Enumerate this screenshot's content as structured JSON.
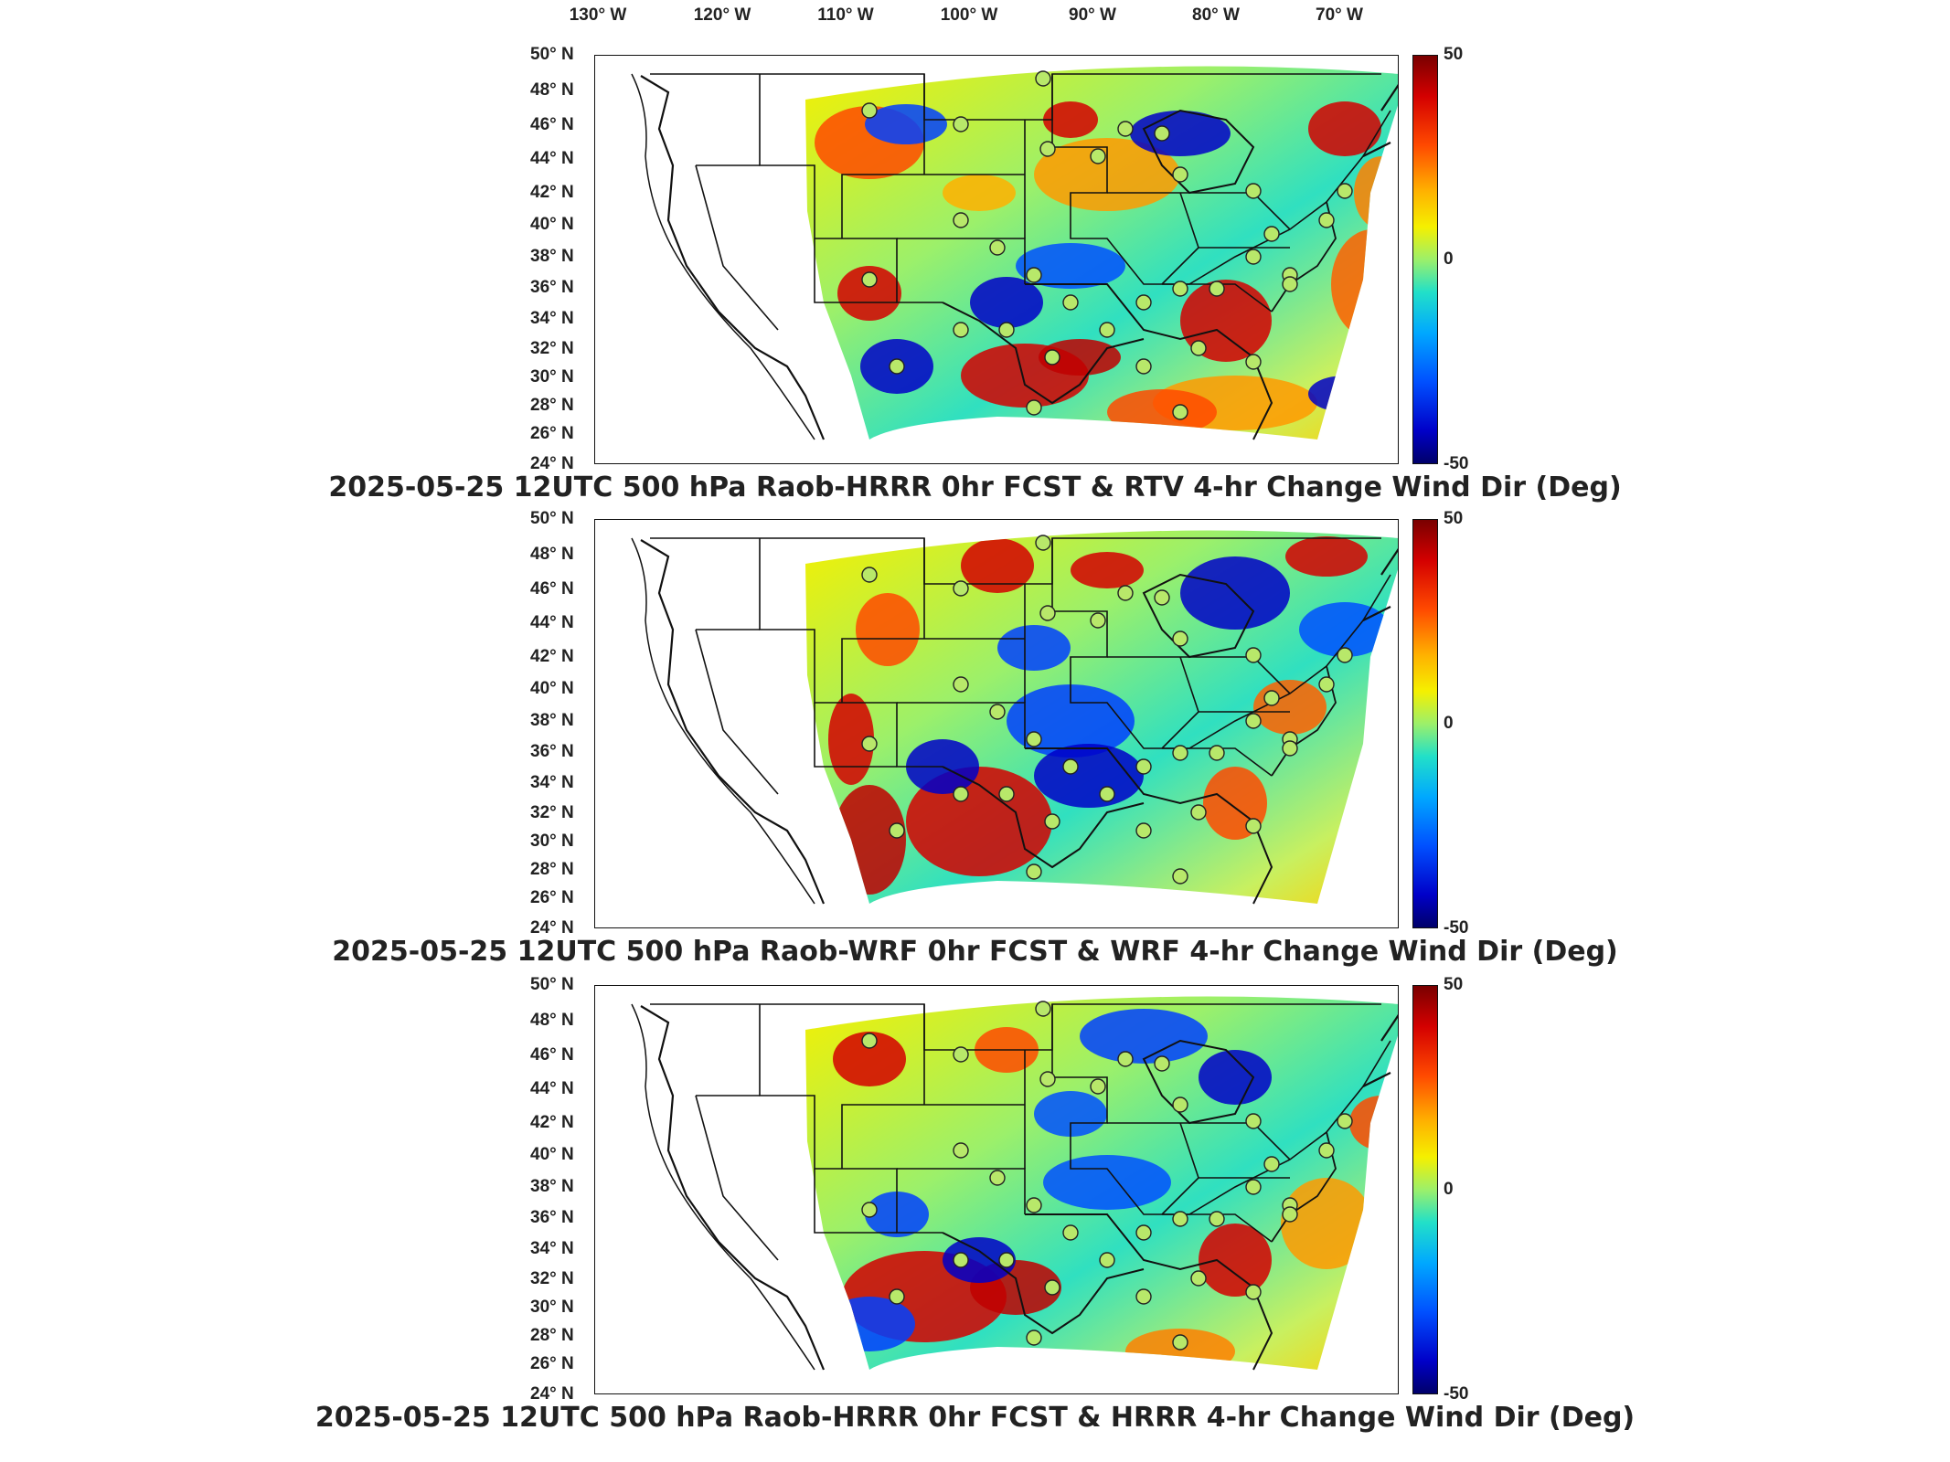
{
  "longitude_labels": [
    "130° W",
    "120° W",
    "110° W",
    "100° W",
    "90° W",
    "80° W",
    "70° W"
  ],
  "latitude_labels": [
    "50° N",
    "48° N",
    "46° N",
    "44° N",
    "42° N",
    "40° N",
    "38° N",
    "36° N",
    "34° N",
    "32° N",
    "30° N",
    "28° N",
    "26° N",
    "24° N"
  ],
  "colorbar": {
    "max": "50",
    "mid": "0",
    "min": "-50"
  },
  "colors": {
    "high": "#c00000",
    "mid": "#9cf06a",
    "low": "#0000b0",
    "outline": "#111111"
  },
  "panels": [
    {
      "title": "2025-05-25 12UTC 500 hPa Raob-HRRR 0hr FCST & RTV 4-hr Change Wind Dir (Deg)"
    },
    {
      "title": "2025-05-25 12UTC 500 hPa Raob-WRF 0hr FCST & WRF 4-hr Change Wind Dir (Deg)"
    },
    {
      "title": "2025-05-25 12UTC 500 hPa Raob-HRRR 0hr FCST & HRRR 4-hr Change Wind Dir (Deg)"
    }
  ]
}
